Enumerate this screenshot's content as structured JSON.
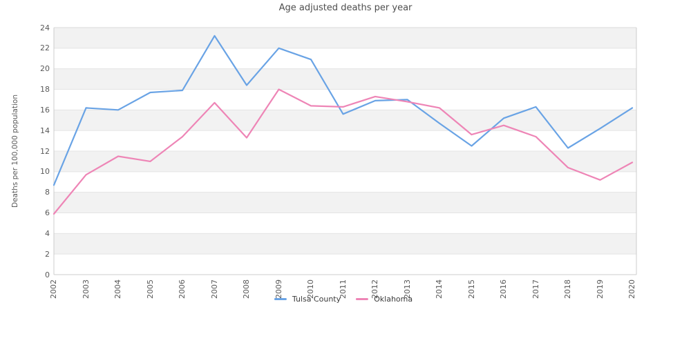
{
  "title": "Age adjusted deaths per year",
  "legend": {
    "items": [
      {
        "label": "Tulsa County",
        "color": "#69a3e5"
      },
      {
        "label": "Oklahoma",
        "color": "#ee85b6"
      }
    ]
  },
  "chart_data": {
    "type": "line",
    "title": "Age adjusted deaths per year",
    "xlabel": "",
    "ylabel": "Deaths per 100,000 population",
    "x": [
      "2002",
      "2003",
      "2004",
      "2005",
      "2006",
      "2007",
      "2008",
      "2009",
      "2010",
      "2011",
      "2012",
      "2013",
      "2014",
      "2015",
      "2016",
      "2017",
      "2018",
      "2019",
      "2020"
    ],
    "series": [
      {
        "name": "Tulsa County",
        "color": "#69a3e5",
        "values": [
          8.7,
          16.2,
          16.0,
          17.7,
          17.9,
          23.2,
          18.4,
          22.0,
          20.9,
          15.6,
          16.9,
          17.0,
          14.7,
          12.5,
          15.2,
          16.3,
          12.3,
          14.2,
          16.2
        ]
      },
      {
        "name": "Oklahoma",
        "color": "#ee85b6",
        "values": [
          5.9,
          9.7,
          11.5,
          11.0,
          13.4,
          16.7,
          13.3,
          18.0,
          16.4,
          16.3,
          17.3,
          16.8,
          16.2,
          13.6,
          14.5,
          13.4,
          10.4,
          9.2,
          10.9
        ]
      }
    ],
    "ylim": [
      0,
      24
    ],
    "y_ticks": [
      0,
      2,
      4,
      6,
      8,
      10,
      12,
      14,
      16,
      18,
      20,
      22,
      24
    ],
    "grid": "horizontal-bands",
    "band_colors": [
      "#ffffff",
      "#f2f2f2"
    ],
    "gridline_color": "#e4e4e4",
    "spine_color": "#cccccc",
    "legend_position": "bottom-center"
  }
}
